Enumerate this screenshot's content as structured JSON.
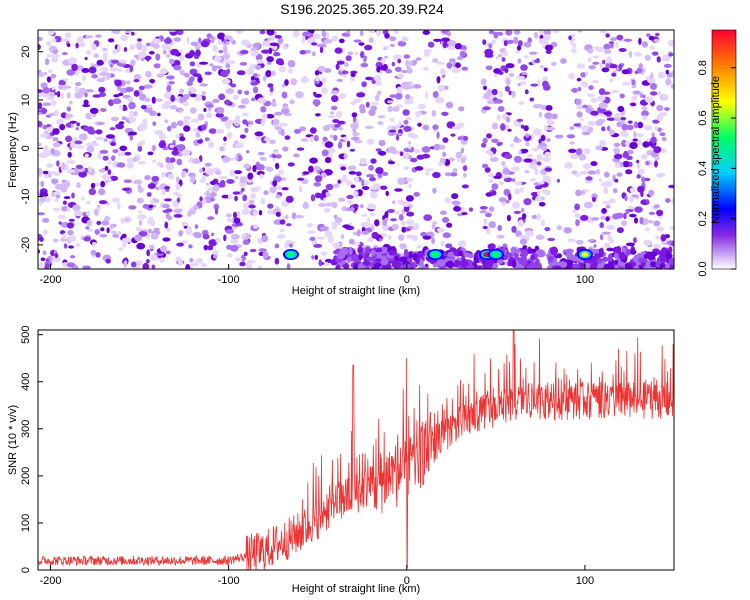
{
  "title": "S196.2025.365.20.39.R24",
  "chart_data": [
    {
      "type": "heatmap",
      "xlabel": "Height of straight line (km)",
      "ylabel": "Frequency (Hz)",
      "xlim": [
        -207,
        150
      ],
      "ylim": [
        -25,
        24.5
      ],
      "xticks": [
        -200,
        -100,
        0,
        100
      ],
      "yticks": [
        -20,
        -10,
        0,
        10,
        20
      ],
      "colorbar": {
        "label": "Normalized spectral amplitude",
        "range": [
          0.0,
          0.95
        ],
        "ticks": [
          "0.0",
          "0.2",
          "0.4",
          "0.6",
          "0.8"
        ],
        "colors": [
          "#ffffff",
          "#c9a7f5",
          "#8a2be2",
          "#0000ff",
          "#00ccff",
          "#00ff66",
          "#ffff00",
          "#ff7f00",
          "#ff0033"
        ]
      },
      "hotspots": [
        {
          "x": -65,
          "y": -22,
          "value": 0.45
        },
        {
          "x": 16,
          "y": -22,
          "value": 0.5
        },
        {
          "x": 45,
          "y": -22,
          "value": 0.92
        },
        {
          "x": 50,
          "y": -22,
          "value": 0.55
        },
        {
          "x": 100,
          "y": -22,
          "value": 0.65
        }
      ]
    },
    {
      "type": "line",
      "xlabel": "Height of straight line (km)",
      "ylabel": "SNR (10 * v/v)",
      "xlim": [
        -207,
        150
      ],
      "ylim": [
        0,
        510
      ],
      "xticks": [
        -200,
        -100,
        0,
        100
      ],
      "yticks": [
        0,
        100,
        200,
        300,
        400,
        500
      ],
      "color": "#ee3333",
      "trend": [
        {
          "x": -207,
          "y": 20
        },
        {
          "x": -100,
          "y": 20
        },
        {
          "x": -80,
          "y": 40
        },
        {
          "x": -60,
          "y": 80
        },
        {
          "x": -40,
          "y": 140
        },
        {
          "x": -20,
          "y": 180
        },
        {
          "x": 0,
          "y": 210
        },
        {
          "x": 20,
          "y": 290
        },
        {
          "x": 40,
          "y": 330
        },
        {
          "x": 60,
          "y": 355
        },
        {
          "x": 100,
          "y": 360
        },
        {
          "x": 150,
          "y": 360
        }
      ],
      "spikes": [
        {
          "x": -30,
          "y": 435
        },
        {
          "x": 0,
          "y": 450
        },
        {
          "x": 60,
          "y": 510
        }
      ]
    }
  ]
}
